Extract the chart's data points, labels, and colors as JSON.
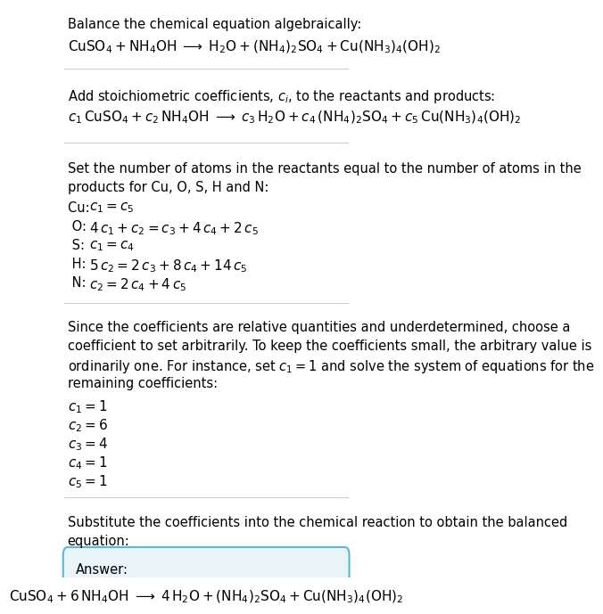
{
  "bg_color": "#ffffff",
  "text_color": "#000000",
  "box_color": "#e8f4f8",
  "box_edge_color": "#5bb8d4",
  "section1_title": "Balance the chemical equation algebraically:",
  "section2_title": "Add stoichiometric coefficients, $c_i$, to the reactants and products:",
  "section3_title_line1": "Set the number of atoms in the reactants equal to the number of atoms in the",
  "section3_title_line2": "products for Cu, O, S, H and N:",
  "section4_lines": [
    "Since the coefficients are relative quantities and underdetermined, choose a",
    "coefficient to set arbitrarily. To keep the coefficients small, the arbitrary value is",
    "ordinarily one. For instance, set $c_1 = 1$ and solve the system of equations for the",
    "remaining coefficients:"
  ],
  "section5_line1": "Substitute the coefficients into the chemical reaction to obtain the balanced",
  "section5_line2": "equation:",
  "answer_label": "Answer:",
  "font_size": 10.5,
  "font_size_eq": 11,
  "line_color": "#cccccc",
  "box_color_face": "#e8f4f8",
  "box_color_edge": "#5bb8d4"
}
